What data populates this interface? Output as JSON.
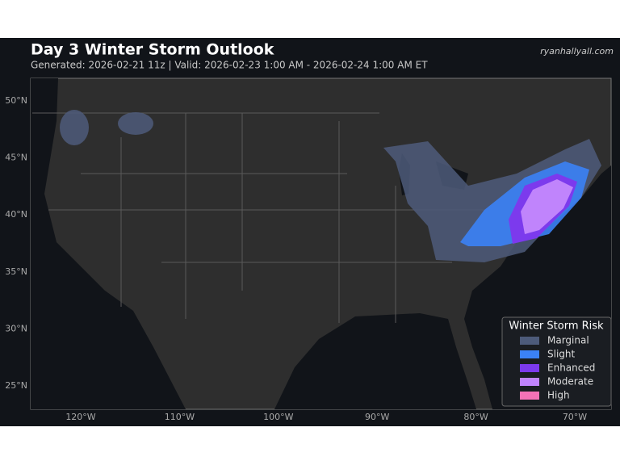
{
  "header": {
    "title": "Day 3 Winter Storm Outlook",
    "subtitle": "Generated: 2026-02-21 11z | Valid: 2026-02-23 1:00 AM - 2026-02-24 1:00 AM ET",
    "source": "ryanhallyall.com"
  },
  "axes": {
    "lat_labels": [
      "50°N",
      "45°N",
      "40°N",
      "35°N",
      "30°N",
      "25°N"
    ],
    "lon_labels": [
      "120°W",
      "110°W",
      "100°W",
      "90°W",
      "80°W",
      "70°W"
    ]
  },
  "legend": {
    "title": "Winter Storm Risk",
    "items": [
      {
        "label": "Marginal",
        "color": "#4d5b7a"
      },
      {
        "label": "Slight",
        "color": "#3b82f6"
      },
      {
        "label": "Enhanced",
        "color": "#7c3aed"
      },
      {
        "label": "Moderate",
        "color": "#c084fc"
      },
      {
        "label": "High",
        "color": "#f472b6"
      }
    ]
  }
}
